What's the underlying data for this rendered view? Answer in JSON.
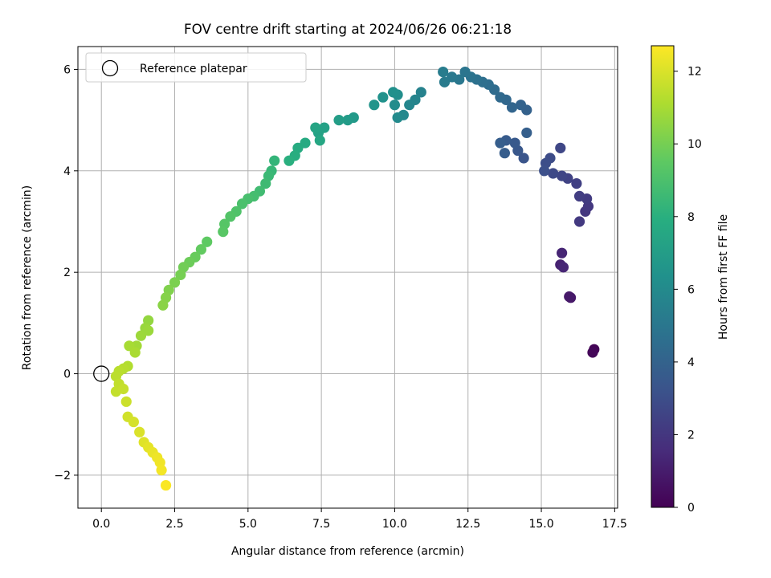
{
  "chart_data": {
    "type": "scatter",
    "title": "FOV centre drift starting at 2024/06/26 06:21:18",
    "xlabel": "Angular distance from reference (arcmin)",
    "ylabel": "Rotation from reference (arcmin)",
    "xlim": [
      -0.8,
      17.6
    ],
    "ylim": [
      -2.65,
      6.45
    ],
    "xticks": [
      0.0,
      2.5,
      5.0,
      7.5,
      10.0,
      12.5,
      15.0,
      17.5
    ],
    "xtick_labels": [
      "0.0",
      "2.5",
      "5.0",
      "7.5",
      "10.0",
      "12.5",
      "15.0",
      "17.5"
    ],
    "yticks": [
      -2,
      0,
      2,
      4,
      6
    ],
    "ytick_labels": [
      "−2",
      "0",
      "2",
      "4",
      "6"
    ],
    "grid": true,
    "legend": {
      "position": "top-left",
      "entries": [
        "Reference platepar"
      ]
    },
    "reference_point": {
      "x": 0.0,
      "y": 0.0
    },
    "colorbar": {
      "label": "Hours from first FF file",
      "colormap": "viridis",
      "range": [
        0,
        12.7
      ],
      "ticks": [
        0,
        2,
        4,
        6,
        8,
        10,
        12
      ],
      "tick_labels": [
        "0",
        "2",
        "4",
        "6",
        "8",
        "10",
        "12"
      ]
    },
    "points": [
      {
        "x": 16.8,
        "y": 0.48,
        "c": 0.1
      },
      {
        "x": 16.75,
        "y": 0.42,
        "c": 0.2
      },
      {
        "x": 16.0,
        "y": 1.5,
        "c": 0.8
      },
      {
        "x": 15.95,
        "y": 1.52,
        "c": 0.85
      },
      {
        "x": 15.65,
        "y": 2.15,
        "c": 1.2
      },
      {
        "x": 15.7,
        "y": 2.38,
        "c": 1.3
      },
      {
        "x": 15.75,
        "y": 2.1,
        "c": 1.35
      },
      {
        "x": 16.5,
        "y": 3.2,
        "c": 2.0
      },
      {
        "x": 16.6,
        "y": 3.3,
        "c": 2.05
      },
      {
        "x": 16.3,
        "y": 3.0,
        "c": 2.1
      },
      {
        "x": 16.55,
        "y": 3.45,
        "c": 2.2
      },
      {
        "x": 16.3,
        "y": 3.5,
        "c": 2.3
      },
      {
        "x": 16.2,
        "y": 3.75,
        "c": 2.4
      },
      {
        "x": 15.9,
        "y": 3.85,
        "c": 2.5
      },
      {
        "x": 15.7,
        "y": 3.9,
        "c": 2.6
      },
      {
        "x": 15.65,
        "y": 4.45,
        "c": 2.7
      },
      {
        "x": 15.4,
        "y": 3.95,
        "c": 2.8
      },
      {
        "x": 15.3,
        "y": 4.25,
        "c": 2.9
      },
      {
        "x": 15.15,
        "y": 4.15,
        "c": 3.0
      },
      {
        "x": 15.1,
        "y": 4.0,
        "c": 3.1
      },
      {
        "x": 14.4,
        "y": 4.25,
        "c": 3.3
      },
      {
        "x": 14.2,
        "y": 4.4,
        "c": 3.4
      },
      {
        "x": 14.1,
        "y": 4.55,
        "c": 3.5
      },
      {
        "x": 13.8,
        "y": 4.6,
        "c": 3.6
      },
      {
        "x": 13.75,
        "y": 4.35,
        "c": 3.7
      },
      {
        "x": 13.6,
        "y": 4.55,
        "c": 3.75
      },
      {
        "x": 14.5,
        "y": 4.75,
        "c": 3.8
      },
      {
        "x": 14.5,
        "y": 5.2,
        "c": 3.9
      },
      {
        "x": 14.3,
        "y": 5.3,
        "c": 4.0
      },
      {
        "x": 14.0,
        "y": 5.25,
        "c": 4.1
      },
      {
        "x": 13.8,
        "y": 5.4,
        "c": 4.2
      },
      {
        "x": 13.6,
        "y": 5.45,
        "c": 4.3
      },
      {
        "x": 13.4,
        "y": 5.6,
        "c": 4.4
      },
      {
        "x": 13.2,
        "y": 5.7,
        "c": 4.5
      },
      {
        "x": 13.0,
        "y": 5.75,
        "c": 4.6
      },
      {
        "x": 12.8,
        "y": 5.8,
        "c": 4.7
      },
      {
        "x": 12.6,
        "y": 5.85,
        "c": 4.8
      },
      {
        "x": 12.4,
        "y": 5.95,
        "c": 4.9
      },
      {
        "x": 12.2,
        "y": 5.8,
        "c": 5.0
      },
      {
        "x": 11.95,
        "y": 5.85,
        "c": 5.1
      },
      {
        "x": 11.7,
        "y": 5.75,
        "c": 5.2
      },
      {
        "x": 11.65,
        "y": 5.95,
        "c": 5.3
      },
      {
        "x": 10.9,
        "y": 5.55,
        "c": 5.6
      },
      {
        "x": 10.7,
        "y": 5.4,
        "c": 5.7
      },
      {
        "x": 10.5,
        "y": 5.3,
        "c": 5.8
      },
      {
        "x": 10.3,
        "y": 5.1,
        "c": 5.9
      },
      {
        "x": 10.1,
        "y": 5.05,
        "c": 6.0
      },
      {
        "x": 10.0,
        "y": 5.3,
        "c": 6.1
      },
      {
        "x": 10.1,
        "y": 5.5,
        "c": 6.2
      },
      {
        "x": 9.95,
        "y": 5.55,
        "c": 6.3
      },
      {
        "x": 9.6,
        "y": 5.45,
        "c": 6.4
      },
      {
        "x": 9.3,
        "y": 5.3,
        "c": 6.5
      },
      {
        "x": 8.6,
        "y": 5.05,
        "c": 6.8
      },
      {
        "x": 8.4,
        "y": 5.0,
        "c": 6.9
      },
      {
        "x": 8.1,
        "y": 5.0,
        "c": 7.0
      },
      {
        "x": 7.6,
        "y": 4.85,
        "c": 7.2
      },
      {
        "x": 7.4,
        "y": 4.75,
        "c": 7.3
      },
      {
        "x": 7.3,
        "y": 4.85,
        "c": 7.4
      },
      {
        "x": 7.45,
        "y": 4.6,
        "c": 7.5
      },
      {
        "x": 6.95,
        "y": 4.55,
        "c": 7.7
      },
      {
        "x": 6.7,
        "y": 4.45,
        "c": 7.8
      },
      {
        "x": 6.6,
        "y": 4.3,
        "c": 7.9
      },
      {
        "x": 6.4,
        "y": 4.2,
        "c": 8.0
      },
      {
        "x": 5.9,
        "y": 4.2,
        "c": 8.3
      },
      {
        "x": 5.8,
        "y": 4.0,
        "c": 8.4
      },
      {
        "x": 5.7,
        "y": 3.9,
        "c": 8.5
      },
      {
        "x": 5.6,
        "y": 3.75,
        "c": 8.6
      },
      {
        "x": 5.4,
        "y": 3.6,
        "c": 8.7
      },
      {
        "x": 5.2,
        "y": 3.5,
        "c": 8.8
      },
      {
        "x": 5.0,
        "y": 3.45,
        "c": 8.9
      },
      {
        "x": 4.8,
        "y": 3.35,
        "c": 9.0
      },
      {
        "x": 4.6,
        "y": 3.2,
        "c": 9.1
      },
      {
        "x": 4.4,
        "y": 3.1,
        "c": 9.2
      },
      {
        "x": 4.2,
        "y": 2.95,
        "c": 9.3
      },
      {
        "x": 4.15,
        "y": 2.8,
        "c": 9.35
      },
      {
        "x": 3.6,
        "y": 2.6,
        "c": 9.5
      },
      {
        "x": 3.4,
        "y": 2.45,
        "c": 9.6
      },
      {
        "x": 3.2,
        "y": 2.3,
        "c": 9.7
      },
      {
        "x": 3.0,
        "y": 2.2,
        "c": 9.8
      },
      {
        "x": 2.8,
        "y": 2.1,
        "c": 9.9
      },
      {
        "x": 2.7,
        "y": 1.95,
        "c": 10.0
      },
      {
        "x": 2.5,
        "y": 1.8,
        "c": 10.1
      },
      {
        "x": 2.3,
        "y": 1.65,
        "c": 10.2
      },
      {
        "x": 2.2,
        "y": 1.5,
        "c": 10.3
      },
      {
        "x": 2.1,
        "y": 1.35,
        "c": 10.4
      },
      {
        "x": 1.6,
        "y": 1.05,
        "c": 10.6
      },
      {
        "x": 1.5,
        "y": 0.9,
        "c": 10.7
      },
      {
        "x": 1.35,
        "y": 0.75,
        "c": 10.8
      },
      {
        "x": 1.6,
        "y": 0.85,
        "c": 10.75
      },
      {
        "x": 1.2,
        "y": 0.55,
        "c": 10.9
      },
      {
        "x": 0.95,
        "y": 0.55,
        "c": 11.0
      },
      {
        "x": 1.15,
        "y": 0.42,
        "c": 11.05
      },
      {
        "x": 0.9,
        "y": 0.15,
        "c": 11.2
      },
      {
        "x": 0.75,
        "y": 0.1,
        "c": 11.3
      },
      {
        "x": 0.6,
        "y": 0.05,
        "c": 11.35
      },
      {
        "x": 0.5,
        "y": -0.05,
        "c": 11.4
      },
      {
        "x": 0.6,
        "y": -0.2,
        "c": 11.5
      },
      {
        "x": 0.5,
        "y": -0.35,
        "c": 11.55
      },
      {
        "x": 0.75,
        "y": -0.3,
        "c": 11.6
      },
      {
        "x": 0.85,
        "y": -0.55,
        "c": 11.7
      },
      {
        "x": 0.9,
        "y": -0.85,
        "c": 11.8
      },
      {
        "x": 1.1,
        "y": -0.95,
        "c": 11.9
      },
      {
        "x": 1.3,
        "y": -1.15,
        "c": 12.0
      },
      {
        "x": 1.45,
        "y": -1.35,
        "c": 12.1
      },
      {
        "x": 1.6,
        "y": -1.45,
        "c": 12.2
      },
      {
        "x": 1.75,
        "y": -1.55,
        "c": 12.3
      },
      {
        "x": 1.9,
        "y": -1.65,
        "c": 12.4
      },
      {
        "x": 2.0,
        "y": -1.75,
        "c": 12.45
      },
      {
        "x": 2.05,
        "y": -1.9,
        "c": 12.5
      },
      {
        "x": 2.2,
        "y": -2.2,
        "c": 12.65
      }
    ]
  }
}
